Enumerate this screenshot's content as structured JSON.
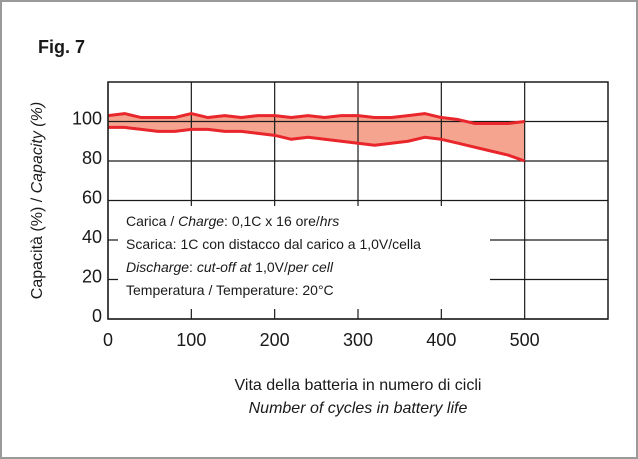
{
  "chart_data": {
    "type": "band",
    "title": "Fig. 7",
    "y_label": [
      {
        "text": "Capacità (%) / ",
        "italic": false
      },
      {
        "text": "Capacity (%)",
        "italic": true
      }
    ],
    "x_label": [
      {
        "text": "Vita della batteria in numero di cicli",
        "italic": false
      },
      {
        "text": "Number of cycles in battery life",
        "italic": true
      }
    ],
    "annotations": [
      [
        {
          "text": "Carica / ",
          "italic": false
        },
        {
          "text": "Charge",
          "italic": true
        },
        {
          "text": ": 0,1C x 16 ore/",
          "italic": false
        },
        {
          "text": "hrs",
          "italic": true
        }
      ],
      [
        {
          "text": "Scarica: 1C con distacco dal carico a 1,0V/cella",
          "italic": false
        }
      ],
      [
        {
          "text": "Discharge",
          "italic": true
        },
        {
          "text": ": ",
          "italic": false
        },
        {
          "text": "cut-off at",
          "italic": true
        },
        {
          "text": " 1,0V/",
          "italic": false
        },
        {
          "text": "per cell",
          "italic": true
        }
      ],
      [
        {
          "text": "Temperatura / Temperature: 20°C",
          "italic": false
        }
      ]
    ],
    "x": [
      0,
      20,
      40,
      60,
      80,
      100,
      120,
      140,
      160,
      180,
      200,
      220,
      240,
      260,
      280,
      300,
      320,
      340,
      360,
      380,
      400,
      420,
      440,
      460,
      480,
      500
    ],
    "series": [
      {
        "color": "#e8262b",
        "values": [
          103,
          104,
          102,
          102,
          102,
          104,
          102,
          103,
          102,
          103,
          103,
          102,
          103,
          102,
          103,
          103,
          102,
          102,
          103,
          104,
          102,
          101,
          99,
          99,
          99,
          100
        ]
      },
      {
        "color": "#e8262b",
        "values": [
          97,
          97,
          96,
          95,
          95,
          96,
          96,
          95,
          95,
          94,
          93,
          91,
          92,
          91,
          90,
          89,
          88,
          89,
          90,
          92,
          91,
          89,
          87,
          85,
          83,
          80
        ]
      }
    ],
    "fill_color": "#f5a58f",
    "xlim": [
      0,
      600
    ],
    "xticks": [
      0,
      100,
      200,
      300,
      400,
      500
    ],
    "ylim": [
      0,
      120
    ],
    "yticks": [
      0,
      20,
      40,
      60,
      80,
      100
    ],
    "grid": true
  }
}
